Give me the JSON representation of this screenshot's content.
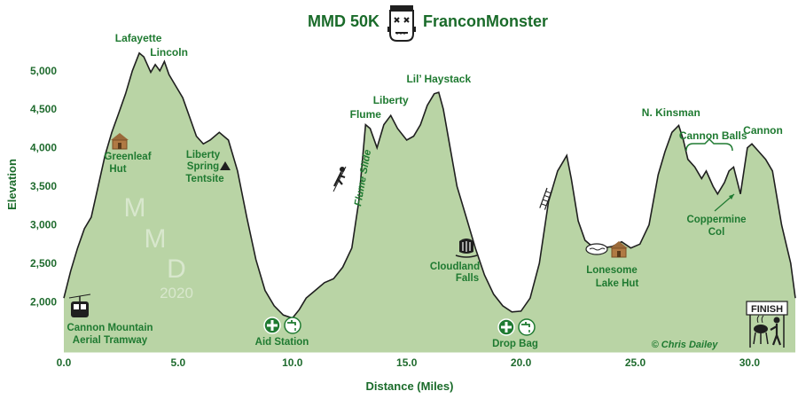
{
  "title": {
    "left": "MMD 50K",
    "right": "FranconMonster",
    "logo_icon": "frankenstein-head-icon"
  },
  "colors": {
    "fill": "#b9d4a5",
    "stroke": "#1f1f1f",
    "text": "#1f7a31",
    "icon_brown": "#9a6a3a"
  },
  "chart_data": {
    "type": "area",
    "title": "MMD 50K FranconMonster",
    "xlabel": "Distance (Miles)",
    "ylabel": "Elevation",
    "xlim": [
      0,
      32
    ],
    "ylim": [
      1350,
      5400
    ],
    "xticks": [
      "0.0",
      "5.0",
      "10.0",
      "15.0",
      "20.0",
      "25.0",
      "30.0"
    ],
    "yticks": [
      "2,000",
      "2,500",
      "3,000",
      "3,500",
      "4,000",
      "4,500",
      "5,000"
    ],
    "grid": false,
    "x": [
      0,
      0.3,
      0.6,
      0.9,
      1.2,
      1.5,
      1.8,
      2.1,
      2.4,
      2.7,
      3.0,
      3.3,
      3.5,
      3.8,
      4.0,
      4.2,
      4.4,
      4.6,
      4.9,
      5.2,
      5.5,
      5.8,
      6.1,
      6.4,
      6.8,
      7.2,
      7.6,
      8.0,
      8.4,
      8.8,
      9.2,
      9.6,
      10.0,
      10.3,
      10.6,
      11.0,
      11.4,
      11.8,
      12.2,
      12.6,
      12.9,
      13.2,
      13.4,
      13.7,
      14.0,
      14.3,
      14.6,
      15.0,
      15.3,
      15.6,
      15.9,
      16.2,
      16.4,
      16.6,
      16.9,
      17.2,
      17.6,
      18.0,
      18.4,
      18.8,
      19.2,
      19.6,
      20.0,
      20.4,
      20.8,
      21.2,
      21.6,
      22.0,
      22.2,
      22.5,
      22.8,
      23.2,
      23.6,
      24.0,
      24.4,
      24.8,
      25.2,
      25.6,
      26.0,
      26.3,
      26.6,
      26.9,
      27.1,
      27.3,
      27.6,
      27.9,
      28.1,
      28.4,
      28.6,
      28.9,
      29.1,
      29.3,
      29.6,
      29.9,
      30.1,
      30.4,
      30.7,
      31.0,
      31.4,
      31.8,
      32.0
    ],
    "y": [
      2050,
      2400,
      2700,
      2950,
      3100,
      3500,
      3900,
      4200,
      4450,
      4700,
      5000,
      5230,
      5180,
      4980,
      5080,
      5000,
      5120,
      4950,
      4800,
      4650,
      4400,
      4150,
      4050,
      4100,
      4200,
      4100,
      3700,
      3100,
      2550,
      2150,
      1950,
      1830,
      1790,
      1900,
      2050,
      2150,
      2250,
      2300,
      2450,
      2700,
      3300,
      4300,
      4250,
      4000,
      4300,
      4420,
      4250,
      4100,
      4150,
      4300,
      4550,
      4700,
      4720,
      4500,
      4000,
      3500,
      3100,
      2700,
      2350,
      2100,
      1950,
      1870,
      1880,
      2050,
      2500,
      3300,
      3700,
      3900,
      3600,
      3050,
      2800,
      2700,
      2700,
      2720,
      2780,
      2700,
      2750,
      3000,
      3650,
      3950,
      4200,
      4290,
      4100,
      3850,
      3750,
      3600,
      3700,
      3500,
      3400,
      3550,
      3700,
      3750,
      3400,
      4000,
      4050,
      3950,
      3850,
      3700,
      3000,
      2500,
      2050
    ],
    "peaks": [
      {
        "name": "Lafayette",
        "x": 3.3
      },
      {
        "name": "Lincoln",
        "x": 4.6
      },
      {
        "name": "Flume",
        "x": 13.2
      },
      {
        "name": "Liberty",
        "x": 14.3
      },
      {
        "name": "Lil’ Haystack",
        "x": 16.4
      },
      {
        "name": "N. Kinsman",
        "x": 26.6
      },
      {
        "name": "Cannon Balls",
        "x": 28.4
      },
      {
        "name": "Cannon",
        "x": 30.7
      }
    ],
    "annotations": {
      "greenleaf": [
        "Greenleaf",
        "Hut"
      ],
      "liberty_spring": [
        "Liberty",
        "Spring",
        "Tentsite"
      ],
      "flume_slide": "Flume Slide",
      "cloudland": [
        "Cloudland",
        "Falls"
      ],
      "lonesome": [
        "Lonesome",
        "Lake Hut"
      ],
      "coppermine": [
        "Coppermine",
        "Col"
      ],
      "tramway": [
        "Cannon Mountain",
        "Aerial Tramway"
      ],
      "aid_station": "Aid Station",
      "drop_bag": "Drop Bag",
      "finish": "FINISH",
      "credit": "© Chris Dailey"
    },
    "watermark": [
      "M",
      "M",
      "D",
      "2020"
    ]
  }
}
